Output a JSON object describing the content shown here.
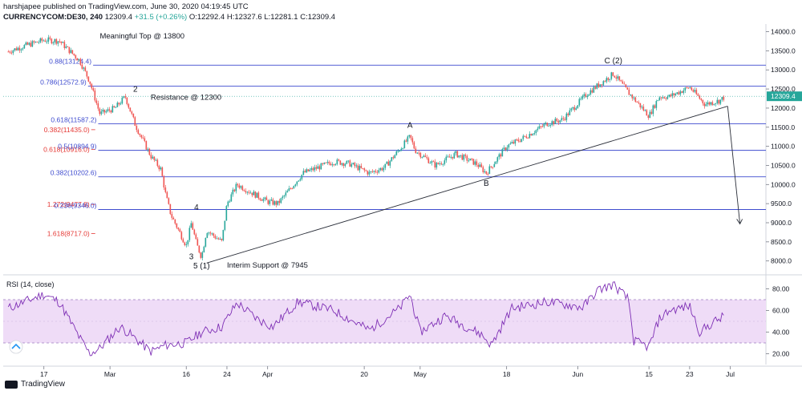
{
  "header": {
    "line1": "harshjapee published on TradingView.com, June 30, 2020 04:19:45 UTC",
    "symbol": "CURRENCYCOM:DE30, 240",
    "last": "12309.4",
    "change": "+31.5 (+0.26%)",
    "ohlc": "O:12292.4 H:12327.6 L:12281.1 C:12309.4"
  },
  "footer": {
    "brand": "TradingView"
  },
  "colors": {
    "up": "#26a69a",
    "down": "#ef5350",
    "fib_line": "#3f4ccf",
    "fib_text_blue": "#3f4ccf",
    "fib_text_red": "#e53935",
    "rsi": "#7e2fb5",
    "rsi_band": "#efdcf7",
    "price_tag": "#26a69a"
  },
  "chart_data": [
    {
      "type": "candlestick",
      "title": "",
      "ylim": [
        7700,
        14200
      ],
      "y_ticks": [
        "14000.0",
        "13500.0",
        "13000.0",
        "12500.0",
        "12000.0",
        "11500.0",
        "11000.0",
        "10500.0",
        "10000.0",
        "9500.0",
        "9000.0",
        "8500.0",
        "8000.0"
      ],
      "x_ticks": [
        "17",
        "Mar",
        "16",
        "24",
        "Apr",
        "20",
        "May",
        "18",
        "Jun",
        "15",
        "23",
        "Jul"
      ],
      "last_price_label": "12309.4",
      "price_path": [
        {
          "t": "Feb 10",
          "v": 13480
        },
        {
          "t": "Feb 13",
          "v": 13620
        },
        {
          "t": "Feb 17",
          "v": 13780
        },
        {
          "t": "Feb 20",
          "v": 13760
        },
        {
          "t": "Feb 24",
          "v": 13250
        },
        {
          "t": "Feb 26",
          "v": 12700
        },
        {
          "t": "Feb 28",
          "v": 11850
        },
        {
          "t": "Mar 2",
          "v": 12000
        },
        {
          "t": "Mar 4",
          "v": 12300
        },
        {
          "t": "Mar 6",
          "v": 11550
        },
        {
          "t": "Mar 9",
          "v": 10750
        },
        {
          "t": "Mar 11",
          "v": 10400
        },
        {
          "t": "Mar 12",
          "v": 9700
        },
        {
          "t": "Mar 13",
          "v": 9200
        },
        {
          "t": "Mar 16",
          "v": 8400
        },
        {
          "t": "Mar 17",
          "v": 9000
        },
        {
          "t": "Mar 18",
          "v": 8450
        },
        {
          "t": "Mar 19",
          "v": 8100
        },
        {
          "t": "Mar 20",
          "v": 8800
        },
        {
          "t": "Mar 23",
          "v": 8500
        },
        {
          "t": "Mar 24",
          "v": 9500
        },
        {
          "t": "Mar 26",
          "v": 10000
        },
        {
          "t": "Mar 30",
          "v": 9700
        },
        {
          "t": "Apr 1",
          "v": 9550
        },
        {
          "t": "Apr 3",
          "v": 9500
        },
        {
          "t": "Apr 8",
          "v": 10300
        },
        {
          "t": "Apr 14",
          "v": 10600
        },
        {
          "t": "Apr 17",
          "v": 10550
        },
        {
          "t": "Apr 21",
          "v": 10300
        },
        {
          "t": "Apr 24",
          "v": 10450
        },
        {
          "t": "Apr 29",
          "v": 11250
        },
        {
          "t": "Apr 30",
          "v": 10900
        },
        {
          "t": "May 4",
          "v": 10500
        },
        {
          "t": "May 8",
          "v": 10800
        },
        {
          "t": "May 12",
          "v": 10550
        },
        {
          "t": "May 14",
          "v": 10300
        },
        {
          "t": "May 18",
          "v": 11000
        },
        {
          "t": "May 21",
          "v": 11200
        },
        {
          "t": "May 26",
          "v": 11600
        },
        {
          "t": "May 29",
          "v": 11700
        },
        {
          "t": "Jun 3",
          "v": 12400
        },
        {
          "t": "Jun 8",
          "v": 12900
        },
        {
          "t": "Jun 11",
          "v": 12400
        },
        {
          "t": "Jun 15",
          "v": 11800
        },
        {
          "t": "Jun 17",
          "v": 12300
        },
        {
          "t": "Jun 19",
          "v": 12300
        },
        {
          "t": "Jun 23",
          "v": 12550
        },
        {
          "t": "Jun 26",
          "v": 12100
        },
        {
          "t": "Jun 29",
          "v": 12200
        },
        {
          "t": "Jun 30",
          "v": 12309.4
        }
      ],
      "fib_levels": [
        {
          "label": "0.88(13124.4)",
          "value": 13124.4,
          "color": "blue",
          "start": "Feb 27"
        },
        {
          "label": "0.786(12572.9)",
          "value": 12572.9,
          "color": "blue",
          "start": "Feb 26"
        },
        {
          "label": "0.618(11587.2)",
          "value": 11587.2,
          "color": "blue",
          "start": "Feb 28"
        },
        {
          "label": "0.382(11435.0)",
          "value": 11435.0,
          "color": "red",
          "start": "Feb 20"
        },
        {
          "label": "0.618(10916.0)",
          "value": 10916.0,
          "color": "red",
          "start": "Feb 20"
        },
        {
          "label": "0.5(10894.9)",
          "value": 10894.9,
          "color": "blue",
          "start": "Feb 28"
        },
        {
          "label": "0.382(10202.6)",
          "value": 10202.6,
          "color": "blue",
          "start": "Feb 28"
        },
        {
          "label": "1.272(9477.8)",
          "value": 9477.8,
          "color": "red",
          "start": "Feb 20"
        },
        {
          "label": "0.236(9346.0)",
          "value": 9346.0,
          "color": "blue",
          "start": "Feb 28"
        },
        {
          "label": "1.618(8717.0)",
          "value": 8717.0,
          "color": "red",
          "start": "Feb 20"
        }
      ],
      "annotations": [
        {
          "text": "Meaningful Top @ 13800",
          "t": "Feb 28",
          "v": 13820
        },
        {
          "text": "2",
          "t": "Mar 6",
          "v": 12430
        },
        {
          "text": "Resistance @ 12300",
          "t": "Mar 9",
          "v": 12220
        },
        {
          "text": "A",
          "t": "Apr 29",
          "v": 11480
        },
        {
          "text": "B",
          "t": "May 14",
          "v": 9960
        },
        {
          "text": "C (2)",
          "t": "Jun 8",
          "v": 13170
        },
        {
          "text": "4",
          "t": "Mar 18",
          "v": 9340
        },
        {
          "text": "3",
          "t": "Mar 17",
          "v": 8050
        },
        {
          "text": "5 (1)",
          "t": "Mar 19",
          "v": 7810
        },
        {
          "text": "Interim Support @ 7945",
          "t": "Mar 24",
          "v": 7830
        }
      ],
      "trendline": [
        {
          "t": "Mar 20",
          "v": 7945
        },
        {
          "t": "Jun 30",
          "v": 12050
        }
      ],
      "projection": [
        {
          "t": "Jun 30",
          "v": 12050
        },
        {
          "t": "Jul 1",
          "v": 8970
        }
      ]
    },
    {
      "type": "line",
      "title": "RSI (14, close)",
      "ylim": [
        10,
        90
      ],
      "y_ticks": [
        "80.00",
        "60.00",
        "40.00",
        "20.00"
      ],
      "band": [
        30,
        70
      ],
      "path": [
        {
          "t": "Feb 10",
          "v": 62
        },
        {
          "t": "Feb 17",
          "v": 75
        },
        {
          "t": "Feb 20",
          "v": 68
        },
        {
          "t": "Feb 24",
          "v": 35
        },
        {
          "t": "Feb 26",
          "v": 20
        },
        {
          "t": "Feb 28",
          "v": 25
        },
        {
          "t": "Mar 3",
          "v": 45
        },
        {
          "t": "Mar 5",
          "v": 38
        },
        {
          "t": "Mar 9",
          "v": 22
        },
        {
          "t": "Mar 12",
          "v": 28
        },
        {
          "t": "Mar 16",
          "v": 30
        },
        {
          "t": "Mar 19",
          "v": 40
        },
        {
          "t": "Mar 23",
          "v": 45
        },
        {
          "t": "Mar 26",
          "v": 67
        },
        {
          "t": "Mar 30",
          "v": 52
        },
        {
          "t": "Apr 2",
          "v": 45
        },
        {
          "t": "Apr 7",
          "v": 68
        },
        {
          "t": "Apr 14",
          "v": 60
        },
        {
          "t": "Apr 21",
          "v": 42
        },
        {
          "t": "Apr 27",
          "v": 62
        },
        {
          "t": "Apr 29",
          "v": 75
        },
        {
          "t": "May 1",
          "v": 40
        },
        {
          "t": "May 6",
          "v": 55
        },
        {
          "t": "May 13",
          "v": 38
        },
        {
          "t": "May 15",
          "v": 28
        },
        {
          "t": "May 19",
          "v": 62
        },
        {
          "t": "May 26",
          "v": 68
        },
        {
          "t": "Jun 2",
          "v": 63
        },
        {
          "t": "Jun 5",
          "v": 79
        },
        {
          "t": "Jun 8",
          "v": 84
        },
        {
          "t": "Jun 11",
          "v": 70
        },
        {
          "t": "Jun 12",
          "v": 32
        },
        {
          "t": "Jun 15",
          "v": 26
        },
        {
          "t": "Jun 17",
          "v": 52
        },
        {
          "t": "Jun 19",
          "v": 60
        },
        {
          "t": "Jun 23",
          "v": 64
        },
        {
          "t": "Jun 25",
          "v": 40
        },
        {
          "t": "Jun 28",
          "v": 50
        },
        {
          "t": "Jun 30",
          "v": 55
        }
      ]
    }
  ]
}
